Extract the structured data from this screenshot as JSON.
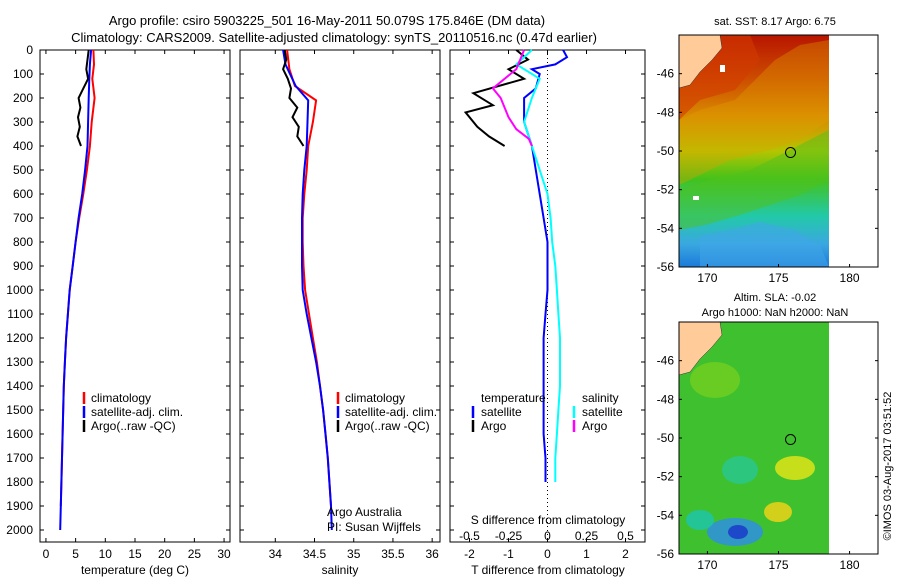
{
  "title_line1": "Argo profile: csiro 5903225_501 16-May-2011 50.079S 175.846E (DM data)",
  "title_line2": "Climatology: CARS2009. Satellite-adjusted climatology: synTS_20110516.nc (0.47d earlier)",
  "watermark": "©IMOS 03-Aug-2017 03:51:52",
  "colors": {
    "climatology": "#ff0000",
    "satellite": "#0000ff",
    "argo": "#000000",
    "satellite_salinity": "#00ffff",
    "argo_salinity": "#ff00ff",
    "land": "#ffcc99"
  },
  "chart_data": [
    {
      "type": "line",
      "name": "temperature",
      "xlabel": "temperature (deg C)",
      "ylabel": "",
      "xlim": [
        -1,
        31
      ],
      "ylim": [
        2050,
        0
      ],
      "xticks": [
        0,
        5,
        10,
        15,
        20,
        25,
        30
      ],
      "yticks": [
        0,
        100,
        200,
        300,
        400,
        500,
        600,
        700,
        800,
        900,
        1000,
        1100,
        1200,
        1300,
        1400,
        1500,
        1600,
        1700,
        1800,
        1900,
        2000
      ],
      "legend": [
        "climatology",
        "satellite-adj. clim.",
        "Argo(..raw -QC)"
      ],
      "series": [
        {
          "name": "climatology",
          "color": "#ff0000",
          "points": [
            [
              8.0,
              0
            ],
            [
              8.1,
              60
            ],
            [
              7.8,
              120
            ],
            [
              8.2,
              200
            ],
            [
              7.7,
              300
            ],
            [
              7.4,
              400
            ],
            [
              6.9,
              500
            ],
            [
              6.3,
              600
            ],
            [
              5.6,
              700
            ],
            [
              5.0,
              800
            ],
            [
              4.5,
              900
            ],
            [
              4.0,
              1000
            ],
            [
              3.7,
              1100
            ],
            [
              3.4,
              1200
            ],
            [
              3.2,
              1300
            ],
            [
              3.0,
              1400
            ],
            [
              2.9,
              1500
            ],
            [
              2.8,
              1600
            ],
            [
              2.7,
              1700
            ],
            [
              2.6,
              1800
            ],
            [
              2.5,
              1900
            ]
          ]
        },
        {
          "name": "satellite-adj. clim.",
          "color": "#0000ff",
          "points": [
            [
              7.6,
              0
            ],
            [
              7.4,
              60
            ],
            [
              7.3,
              120
            ],
            [
              7.2,
              200
            ],
            [
              7.1,
              300
            ],
            [
              7.0,
              400
            ],
            [
              6.6,
              500
            ],
            [
              6.1,
              600
            ],
            [
              5.5,
              700
            ],
            [
              5.0,
              800
            ],
            [
              4.5,
              900
            ],
            [
              4.0,
              1000
            ],
            [
              3.7,
              1100
            ],
            [
              3.4,
              1200
            ],
            [
              3.2,
              1300
            ],
            [
              3.0,
              1400
            ],
            [
              2.9,
              1500
            ],
            [
              2.8,
              1600
            ],
            [
              2.7,
              1700
            ],
            [
              2.6,
              1800
            ],
            [
              2.5,
              1900
            ],
            [
              2.4,
              2000
            ]
          ]
        },
        {
          "name": "Argo(..raw -QC)",
          "color": "#000000",
          "points": [
            [
              7.2,
              0
            ],
            [
              7.0,
              40
            ],
            [
              6.8,
              80
            ],
            [
              7.1,
              120
            ],
            [
              6.3,
              160
            ],
            [
              5.5,
              200
            ],
            [
              5.8,
              240
            ],
            [
              5.4,
              280
            ],
            [
              5.7,
              320
            ],
            [
              5.3,
              360
            ],
            [
              5.9,
              400
            ]
          ]
        }
      ]
    },
    {
      "type": "line",
      "name": "salinity",
      "xlabel": "salinity",
      "ylabel": "",
      "xlim": [
        33.55,
        36.1
      ],
      "ylim": [
        2050,
        0
      ],
      "xticks": [
        34,
        34.5,
        35,
        35.5,
        36
      ],
      "legend": [
        "climatology",
        "satellite-adj. clim.",
        "Argo(..raw -QC)"
      ],
      "annotation": [
        "Argo Australia",
        "PI: Susan Wijffels"
      ],
      "series": [
        {
          "name": "climatology",
          "color": "#ff0000",
          "points": [
            [
              34.15,
              0
            ],
            [
              34.18,
              80
            ],
            [
              34.25,
              150
            ],
            [
              34.52,
              210
            ],
            [
              34.48,
              300
            ],
            [
              34.42,
              400
            ],
            [
              34.4,
              500
            ],
            [
              34.37,
              600
            ],
            [
              34.35,
              700
            ],
            [
              34.35,
              800
            ],
            [
              34.36,
              900
            ],
            [
              34.38,
              1000
            ],
            [
              34.43,
              1100
            ],
            [
              34.48,
              1200
            ],
            [
              34.53,
              1300
            ],
            [
              34.57,
              1400
            ],
            [
              34.61,
              1500
            ],
            [
              34.64,
              1600
            ],
            [
              34.67,
              1700
            ],
            [
              34.69,
              1800
            ],
            [
              34.71,
              1900
            ]
          ]
        },
        {
          "name": "satellite-adj. clim.",
          "color": "#0000ff",
          "points": [
            [
              34.1,
              0
            ],
            [
              34.13,
              60
            ],
            [
              34.26,
              150
            ],
            [
              34.42,
              210
            ],
            [
              34.41,
              300
            ],
            [
              34.4,
              400
            ],
            [
              34.37,
              500
            ],
            [
              34.35,
              600
            ],
            [
              34.34,
              700
            ],
            [
              34.34,
              800
            ],
            [
              34.34,
              900
            ],
            [
              34.35,
              1000
            ],
            [
              34.4,
              1100
            ],
            [
              34.46,
              1200
            ],
            [
              34.52,
              1300
            ],
            [
              34.57,
              1400
            ],
            [
              34.61,
              1500
            ],
            [
              34.64,
              1600
            ],
            [
              34.67,
              1700
            ],
            [
              34.69,
              1800
            ],
            [
              34.71,
              1900
            ],
            [
              34.72,
              2000
            ]
          ]
        },
        {
          "name": "Argo(..raw -QC)",
          "color": "#000000",
          "points": [
            [
              34.12,
              0
            ],
            [
              34.14,
              40
            ],
            [
              34.1,
              80
            ],
            [
              34.16,
              120
            ],
            [
              34.2,
              160
            ],
            [
              34.18,
              200
            ],
            [
              34.28,
              240
            ],
            [
              34.22,
              280
            ],
            [
              34.3,
              320
            ],
            [
              34.28,
              360
            ],
            [
              34.36,
              400
            ]
          ]
        }
      ]
    },
    {
      "type": "line",
      "name": "difference",
      "xlabel": "T difference from climatology",
      "xlabel_top": "S difference from climatology",
      "xlim": [
        -2.5,
        2.5
      ],
      "ylim": [
        2050,
        0
      ],
      "xticks": [
        -2,
        -1,
        0,
        1,
        2
      ],
      "xtick_labels": [
        "-2",
        "-1",
        "0",
        "1",
        "2"
      ],
      "xticks_top": [
        -0.5,
        -0.25,
        0,
        0.25,
        0.5
      ],
      "xtick_labels_top": [
        "-0.5",
        "-0.25",
        "0",
        "0.25",
        "0.5"
      ],
      "legend_temperature": [
        "temperature",
        "satellite",
        "Argo"
      ],
      "legend_salinity": [
        "salinity",
        "satellite",
        "Argo"
      ],
      "series": [
        {
          "name": "temperature satellite",
          "color": "#0000ff",
          "points": [
            [
              0.4,
              0
            ],
            [
              0.5,
              30
            ],
            [
              0.2,
              60
            ],
            [
              -0.4,
              80
            ],
            [
              -0.2,
              100
            ],
            [
              -0.3,
              160
            ],
            [
              -0.6,
              200
            ],
            [
              -0.6,
              300
            ],
            [
              -0.4,
              400
            ],
            [
              -0.3,
              500
            ],
            [
              -0.2,
              600
            ],
            [
              -0.1,
              700
            ],
            [
              0.0,
              800
            ],
            [
              0.0,
              900
            ],
            [
              0.0,
              1000
            ],
            [
              -0.05,
              1100
            ],
            [
              -0.1,
              1200
            ],
            [
              -0.1,
              1300
            ],
            [
              -0.1,
              1400
            ],
            [
              -0.1,
              1500
            ],
            [
              -0.1,
              1600
            ],
            [
              -0.05,
              1700
            ],
            [
              -0.05,
              1800
            ]
          ]
        },
        {
          "name": "temperature Argo",
          "color": "#000000",
          "points": [
            [
              -0.8,
              0
            ],
            [
              -0.5,
              40
            ],
            [
              -1.0,
              80
            ],
            [
              -0.6,
              120
            ],
            [
              -1.9,
              180
            ],
            [
              -1.4,
              230
            ],
            [
              -2.1,
              260
            ],
            [
              -1.8,
              320
            ],
            [
              -1.5,
              360
            ],
            [
              -1.1,
              400
            ]
          ]
        },
        {
          "name": "salinity satellite",
          "color": "#00ffff",
          "points": [
            [
              -0.1,
              0
            ],
            [
              -0.2,
              60
            ],
            [
              -0.05,
              120
            ],
            [
              -0.1,
              200
            ],
            [
              -0.15,
              300
            ],
            [
              -0.1,
              400
            ],
            [
              -0.05,
              500
            ],
            [
              0.0,
              600
            ],
            [
              0.02,
              700
            ],
            [
              0.03,
              800
            ],
            [
              0.05,
              900
            ],
            [
              0.06,
              1000
            ],
            [
              0.07,
              1100
            ],
            [
              0.08,
              1200
            ],
            [
              0.08,
              1300
            ],
            [
              0.08,
              1400
            ],
            [
              0.07,
              1500
            ],
            [
              0.06,
              1600
            ],
            [
              0.05,
              1700
            ],
            [
              0.05,
              1800
            ]
          ]
        },
        {
          "name": "salinity Argo",
          "color": "#ff00ff",
          "points": [
            [
              -0.15,
              0
            ],
            [
              -0.2,
              80
            ],
            [
              -0.35,
              160
            ],
            [
              -0.3,
              200
            ],
            [
              -0.25,
              280
            ],
            [
              -0.2,
              330
            ],
            [
              -0.12,
              370
            ],
            [
              -0.1,
              400
            ]
          ]
        }
      ]
    },
    {
      "type": "heatmap",
      "name": "sst_map",
      "title": "sat. SST: 8.17 Argo: 6.75",
      "xlim": [
        168,
        182
      ],
      "ylim": [
        -56,
        -44
      ],
      "xticks": [
        170,
        175,
        180
      ],
      "yticks": [
        -46,
        -48,
        -50,
        -52,
        -54,
        -56
      ],
      "marker": {
        "lon": 175.846,
        "lat": -50.079
      }
    },
    {
      "type": "heatmap",
      "name": "sla_map",
      "title_line1": "Altim. SLA: -0.02",
      "title_line2": "Argo h1000: NaN h2000: NaN",
      "xlim": [
        168,
        182
      ],
      "ylim": [
        -56,
        -44
      ],
      "xticks": [
        170,
        175,
        180
      ],
      "yticks": [
        -46,
        -48,
        -50,
        -52,
        -54,
        -56
      ],
      "marker": {
        "lon": 175.846,
        "lat": -50.079
      }
    }
  ]
}
